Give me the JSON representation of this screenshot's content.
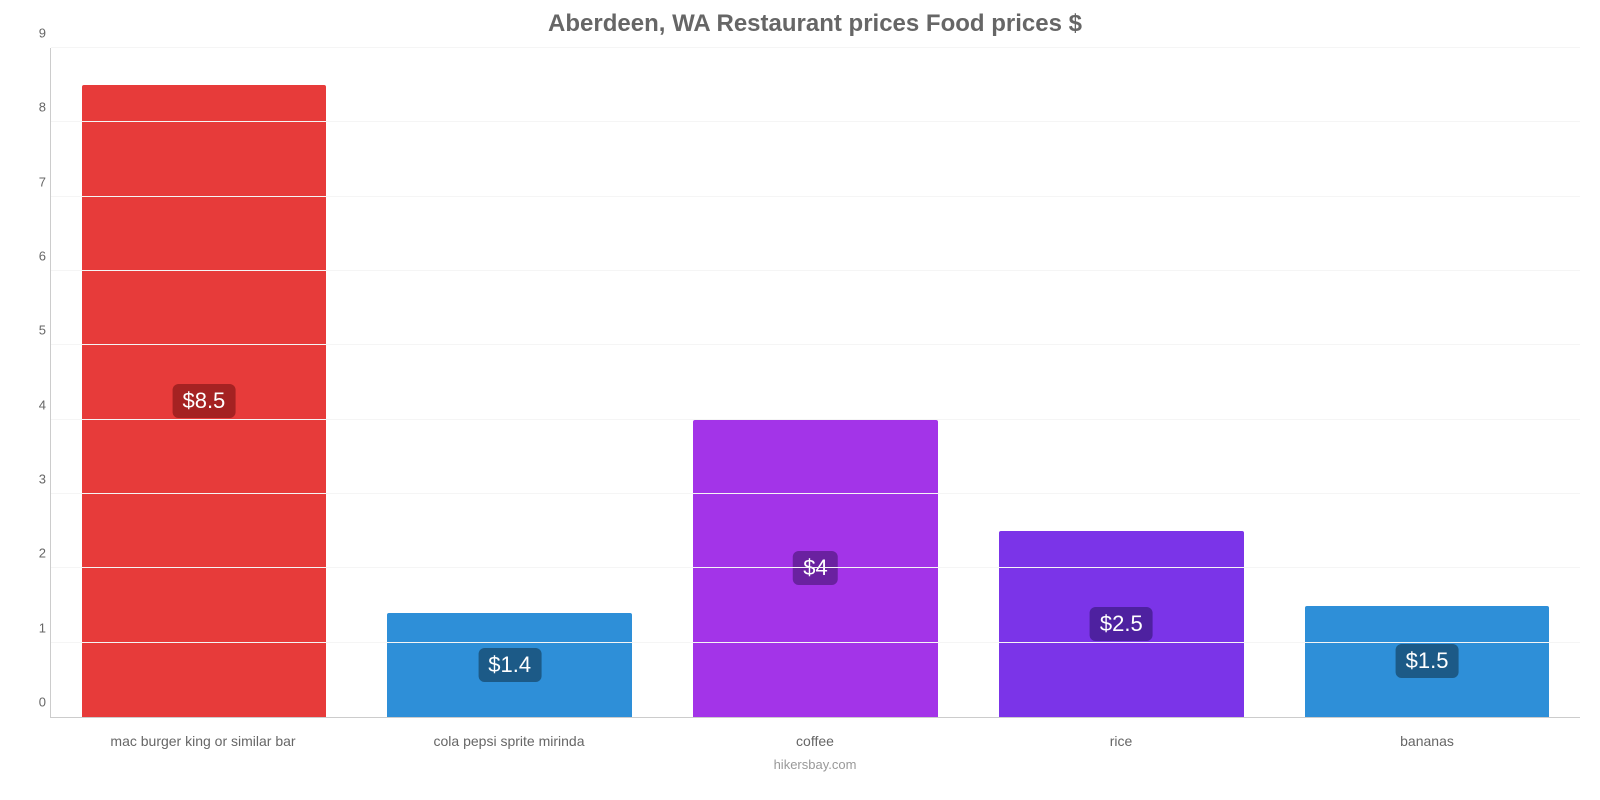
{
  "chart": {
    "type": "bar",
    "title": "Aberdeen, WA Restaurant prices Food prices $",
    "title_fontsize": 24,
    "title_color": "#666666",
    "background_color": "#ffffff",
    "grid_color": "#f5f5f5",
    "axis_color": "#cccccc",
    "tick_label_color": "#666666",
    "tick_label_fontsize": 13,
    "x_label_fontsize": 14,
    "x_label_color": "#666666",
    "ylim": [
      0,
      9
    ],
    "ytick_step": 1,
    "yticks": [
      0,
      1,
      2,
      3,
      4,
      5,
      6,
      7,
      8,
      9
    ],
    "bar_width": 0.8,
    "value_badge_fontsize": 22,
    "value_badge_text_color": "#ffffff",
    "categories": [
      "mac burger king or similar bar",
      "cola pepsi sprite mirinda",
      "coffee",
      "rice",
      "bananas"
    ],
    "values": [
      8.5,
      1.4,
      4,
      2.5,
      1.5
    ],
    "value_labels": [
      "$8.5",
      "$1.4",
      "$4",
      "$2.5",
      "$1.5"
    ],
    "bar_colors": [
      "#e73b3a",
      "#2e8fd8",
      "#a334e8",
      "#7b34e8",
      "#2e8fd8"
    ],
    "badge_colors": [
      "#a52222",
      "#1c5a87",
      "#6a21a0",
      "#4e21a0",
      "#1c5a87"
    ],
    "footer": "hikersbay.com",
    "footer_color": "#999999",
    "footer_fontsize": 13
  }
}
